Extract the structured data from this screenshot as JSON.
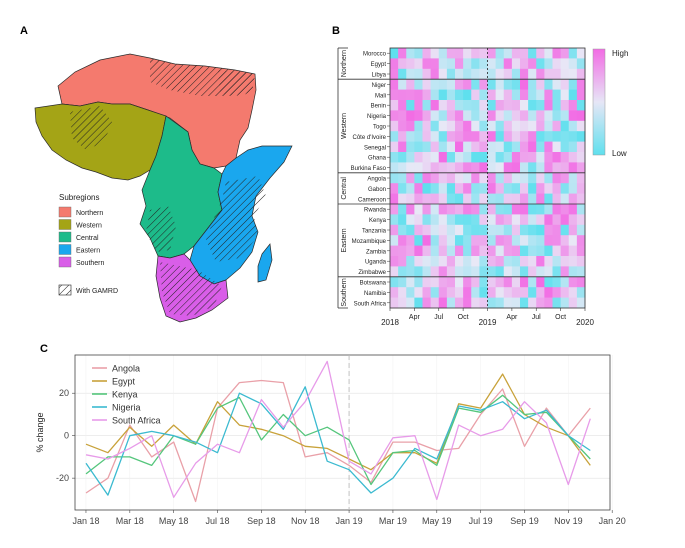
{
  "panels": {
    "a": {
      "letter": "A",
      "legend_title": "Subregions",
      "legend": [
        {
          "label": "Northern",
          "color": "#f47a6e"
        },
        {
          "label": "Western",
          "color": "#a4a416"
        },
        {
          "label": "Central",
          "color": "#1dbb8a"
        },
        {
          "label": "Eastern",
          "color": "#1aa7ee"
        },
        {
          "label": "Southern",
          "color": "#d95ee8"
        }
      ],
      "hatch_label": "With GAMRD"
    },
    "b": {
      "letter": "B",
      "scale_high": "High",
      "scale_low": "Low",
      "x_labels": [
        "2018",
        "Apr",
        "Jul",
        "Oct",
        "2019",
        "Apr",
        "Jul",
        "Oct",
        "2020"
      ],
      "groups": [
        {
          "name": "Northern",
          "countries": [
            "Morocco",
            "Egypt",
            "Libya"
          ]
        },
        {
          "name": "Western",
          "countries": [
            "Niger",
            "Mali",
            "Benin",
            "Nigeria",
            "Togo",
            "Côte d'Ivoire",
            "Senegal",
            "Ghana",
            "Burkina Faso"
          ]
        },
        {
          "name": "Central",
          "countries": [
            "Angola",
            "Gabon",
            "Cameroon"
          ]
        },
        {
          "name": "Eastern",
          "countries": [
            "Rwanda",
            "Kenya",
            "Tanzania",
            "Mozambique",
            "Zambia",
            "Uganda",
            "Zimbabwe"
          ]
        },
        {
          "name": "Southern",
          "countries": [
            "Botswana",
            "Namibia",
            "South Africa"
          ]
        }
      ],
      "low_color": "#5fe0ee",
      "high_color": "#f26be4"
    },
    "c": {
      "letter": "C"
    }
  },
  "chart_data": {
    "type": "line",
    "ylabel": "% change",
    "xlabel": "",
    "x": [
      "Jan 18",
      "Feb 18",
      "Mar 18",
      "Apr 18",
      "May 18",
      "Jun 18",
      "Jul 18",
      "Aug 18",
      "Sep 18",
      "Oct 18",
      "Nov 18",
      "Dec 18",
      "Jan 19",
      "Feb 19",
      "Mar 19",
      "Apr 19",
      "May 19",
      "Jun 19",
      "Jul 19",
      "Aug 19",
      "Sep 19",
      "Oct 19",
      "Nov 19",
      "Dec 19"
    ],
    "x_ticks": [
      "Jan 18",
      "Mar 18",
      "May 18",
      "Jul 18",
      "Sep 18",
      "Nov 18",
      "Jan 19",
      "Mar 19",
      "May 19",
      "Jul 19",
      "Sep 19",
      "Nov 19",
      "Jan 20"
    ],
    "ylim": [
      -35,
      38
    ],
    "y_ticks": [
      -20,
      0,
      20
    ],
    "vline": "Jan 19",
    "grid": true,
    "legend_position": "top-left",
    "series": [
      {
        "name": "Angola",
        "color": "#e9a0a8",
        "values": [
          -27,
          -20,
          5,
          -10,
          -3,
          -31,
          13,
          25,
          26,
          25,
          -10,
          -8,
          -14,
          -22,
          -3,
          -3,
          -7,
          -6,
          10,
          22,
          -5,
          13,
          0,
          13
        ]
      },
      {
        "name": "Egypt",
        "color": "#c8a23a",
        "values": [
          -4,
          -8,
          4,
          -5,
          5,
          -4,
          16,
          5,
          3,
          0,
          -5,
          -6,
          -11,
          -16,
          -8,
          -8,
          -13,
          15,
          13,
          29,
          10,
          4,
          0,
          -14
        ]
      },
      {
        "name": "Kenya",
        "color": "#55c67c",
        "values": [
          -18,
          -10,
          -10,
          -14,
          0,
          -4,
          13,
          18,
          -2,
          10,
          0,
          4,
          -2,
          -23,
          -8,
          -7,
          -14,
          13,
          11,
          19,
          10,
          11,
          0,
          -11
        ]
      },
      {
        "name": "Nigeria",
        "color": "#3bbad0",
        "values": [
          -13,
          -28,
          0,
          2,
          0,
          -3,
          -8,
          20,
          15,
          3,
          23,
          -12,
          -16,
          -27,
          -20,
          -6,
          -11,
          14,
          12,
          16,
          8,
          12,
          0,
          -7
        ]
      },
      {
        "name": "South Africa",
        "color": "#e79be9",
        "values": [
          -9,
          -11,
          -6,
          0,
          -29,
          -13,
          -4,
          -8,
          17,
          4,
          16,
          35,
          -12,
          -18,
          -1,
          0,
          -30,
          5,
          0,
          3,
          16,
          6,
          -23,
          8
        ]
      }
    ]
  }
}
